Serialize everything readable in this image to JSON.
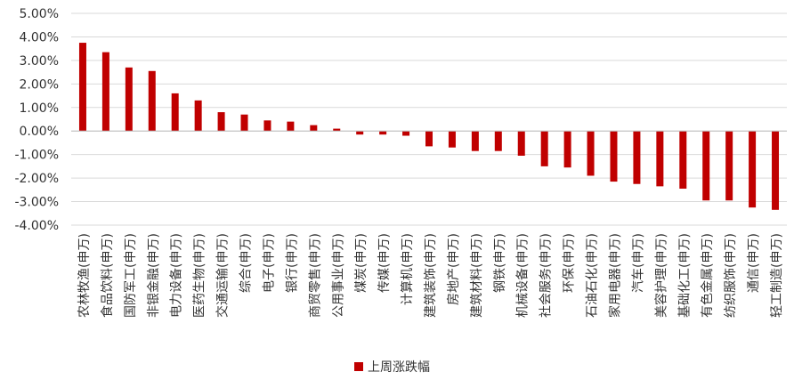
{
  "chart_data": {
    "type": "bar",
    "categories": [
      "农林牧渔(申万)",
      "食品饮料(申万)",
      "国防军工(申万)",
      "非银金融(申万)",
      "电力设备(申万)",
      "医药生物(申万)",
      "交通运输(申万)",
      "综合(申万)",
      "电子(申万)",
      "银行(申万)",
      "商贸零售(申万)",
      "公用事业(申万)",
      "煤炭(申万)",
      "传媒(申万)",
      "计算机(申万)",
      "建筑装饰(申万)",
      "房地产(申万)",
      "建筑材料(申万)",
      "钢铁(申万)",
      "机械设备(申万)",
      "社会服务(申万)",
      "环保(申万)",
      "石油石化(申万)",
      "家用电器(申万)",
      "汽车(申万)",
      "美容护理(申万)",
      "基础化工(申万)",
      "有色金属(申万)",
      "纺织服饰(申万)",
      "通信(申万)",
      "轻工制造(申万)"
    ],
    "series": [
      {
        "name": "上周涨跌幅",
        "values": [
          3.75,
          3.35,
          2.7,
          2.55,
          1.6,
          1.3,
          0.8,
          0.7,
          0.45,
          0.4,
          0.25,
          0.1,
          -0.15,
          -0.15,
          -0.2,
          -0.65,
          -0.7,
          -0.85,
          -0.85,
          -1.05,
          -1.5,
          -1.55,
          -1.9,
          -2.15,
          -2.25,
          -2.35,
          -2.45,
          -2.95,
          -2.95,
          -3.25,
          -3.35
        ],
        "color": "#c00000"
      }
    ],
    "ylim": [
      -4,
      5
    ],
    "yticks": [
      5,
      4,
      3,
      2,
      1,
      0,
      -1,
      -2,
      -3,
      -4
    ],
    "ytick_labels": [
      "5.00%",
      "4.00%",
      "3.00%",
      "2.00%",
      "1.00%",
      "0.00%",
      "-1.00%",
      "-2.00%",
      "-3.00%",
      "-4.00%"
    ],
    "grid": true,
    "grid_color": "#d9d9d9",
    "legend_position": "bottom-center"
  }
}
